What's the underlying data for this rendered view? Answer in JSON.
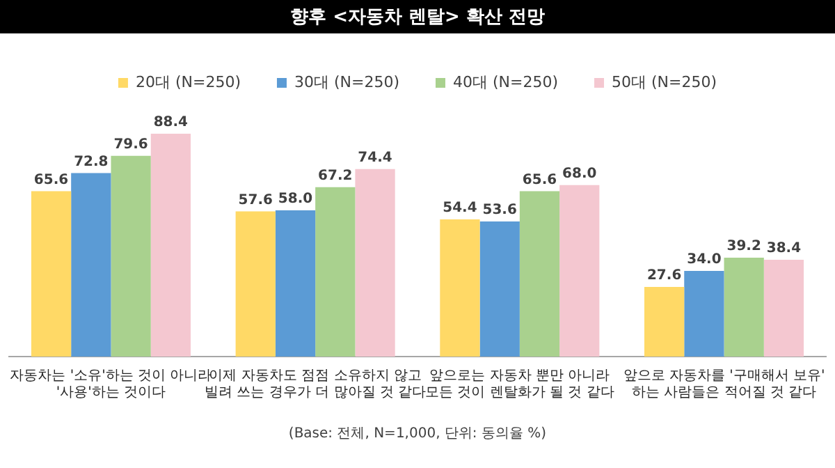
{
  "chart_data": {
    "type": "bar",
    "title": "향후 <자동차 렌탈> 확산 전망",
    "categories": [
      "자동차는 '소유'하는 것이 아니라\n'사용'하는 것이다",
      "이제 자동차도 점점 소유하지 않고\n빌려 쓰는 경우가 더 많아질 것 같다",
      "앞으로는 자동차 뿐만 아니라\n모든 것이 렌탈화가 될 것 같다",
      "앞으로 자동차를 '구매해서 보유'\n하는 사람들은 적어질 것 같다"
    ],
    "series": [
      {
        "name": "20대 (N=250)",
        "color": "#ffd966",
        "values": [
          65.6,
          57.6,
          54.4,
          27.6
        ],
        "value_labels": [
          "65.6",
          "57.6",
          "54.4",
          "27.6"
        ]
      },
      {
        "name": "30대 (N=250)",
        "color": "#5b9bd5",
        "values": [
          72.8,
          58.0,
          53.6,
          34.0
        ],
        "value_labels": [
          "72.8",
          "58.0",
          "53.6",
          "34.0"
        ]
      },
      {
        "name": "40대 (N=250)",
        "color": "#a9d18e",
        "values": [
          79.6,
          67.2,
          65.6,
          39.2
        ],
        "value_labels": [
          "79.6",
          "67.2",
          "65.6",
          "39.2"
        ]
      },
      {
        "name": "50대 (N=250)",
        "color": "#f4c7d0",
        "values": [
          88.4,
          74.4,
          68.0,
          38.4
        ],
        "value_labels": [
          "88.4",
          "74.4",
          "68.0",
          "38.4"
        ]
      }
    ],
    "legend": "top",
    "grid": false,
    "tick_labels": "x",
    "annotations": [
      "(Base: 전체, N=1,000, 단위: 동의율 %)"
    ]
  }
}
